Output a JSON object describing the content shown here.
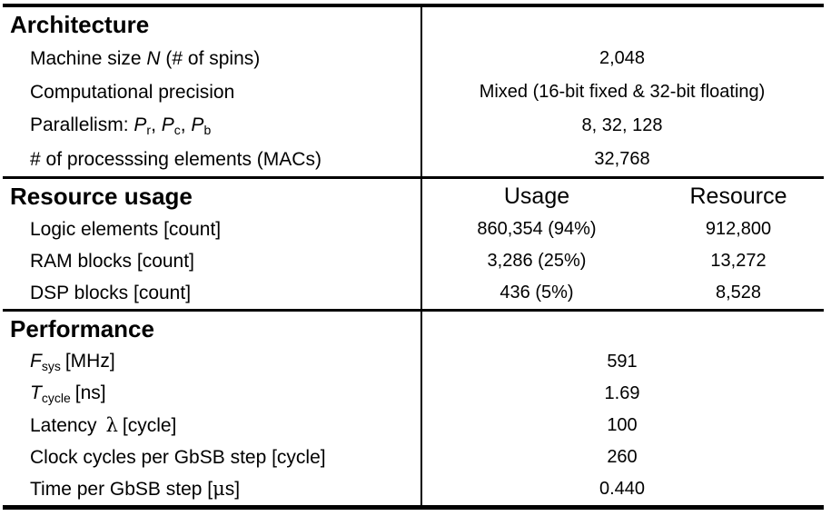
{
  "table": {
    "sections": [
      {
        "title": "Architecture",
        "rows": [
          {
            "parts": {
              "a": "Machine size ",
              "b": "N",
              "c": " (# of spins)"
            },
            "value": "2,048"
          },
          {
            "parts": {
              "a": "Computational precision"
            },
            "value": "Mixed (16-bit fixed & 32-bit floating)"
          },
          {
            "parts": {
              "a": "Parallelism: ",
              "p1": "P",
              "s1": "r",
              "sep1": ", ",
              "p2": "P",
              "s2": "c",
              "sep2": ", ",
              "p3": "P",
              "s3": "b"
            },
            "value": "8, 32, 128"
          },
          {
            "parts": {
              "a": "# of processsing elements (MACs)"
            },
            "value": "32,768"
          }
        ]
      },
      {
        "title": "Resource usage",
        "usage_header": "Usage",
        "resource_header": "Resource",
        "rows": [
          {
            "label": "Logic elements [count]",
            "usage": "860,354 (94%)",
            "resource": "912,800"
          },
          {
            "label": "RAM blocks [count]",
            "usage": "3,286 (25%)",
            "resource": "13,272"
          },
          {
            "label": "DSP blocks [count]",
            "usage": "436 (5%)",
            "resource": "8,528"
          }
        ]
      },
      {
        "title": "Performance",
        "rows": [
          {
            "parts": {
              "f": "F",
              "fsub": "sys",
              "rest": "[MHz]"
            },
            "value": "591"
          },
          {
            "parts": {
              "t": "T",
              "tsub": "cycle",
              "rest": "[ns]"
            },
            "value": "1.69"
          },
          {
            "parts": {
              "a": "Latency",
              "lambda": "λ",
              "rest": "[cycle]"
            },
            "value": "100"
          },
          {
            "parts": {
              "a": "Clock cycles per GbSB step [cycle]"
            },
            "value": "260"
          },
          {
            "parts": {
              "a": "Time per GbSB step [",
              "mu": "μ",
              "rest": "s]"
            },
            "value": "0.440"
          }
        ]
      }
    ]
  }
}
